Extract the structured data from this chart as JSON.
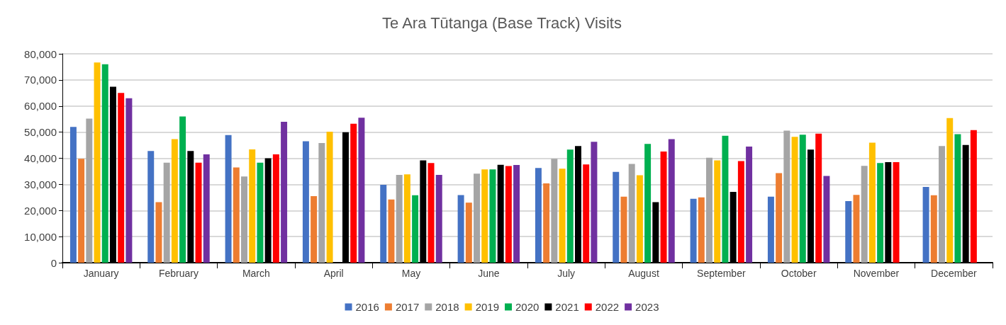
{
  "chart_data": {
    "type": "bar",
    "title": "Te Ara Tūtanga (Base Track) Visits",
    "categories": [
      "January",
      "February",
      "March",
      "April",
      "May",
      "June",
      "July",
      "August",
      "September",
      "October",
      "November",
      "December"
    ],
    "series": [
      {
        "name": "2016",
        "color": "#4472c4",
        "values": [
          52000,
          42800,
          48900,
          46500,
          29800,
          25900,
          36300,
          34800,
          24500,
          25300,
          23600,
          29000
        ]
      },
      {
        "name": "2017",
        "color": "#ed7d31",
        "values": [
          39800,
          23200,
          36500,
          25500,
          24200,
          23000,
          30400,
          25300,
          25000,
          34300,
          26000,
          25800
        ]
      },
      {
        "name": "2018",
        "color": "#a5a5a5",
        "values": [
          55200,
          38300,
          33000,
          45800,
          33600,
          34100,
          39800,
          37800,
          40200,
          50600,
          37100,
          44700
        ]
      },
      {
        "name": "2019",
        "color": "#ffc000",
        "values": [
          76700,
          47300,
          43400,
          50200,
          33800,
          35700,
          36000,
          33500,
          39200,
          48200,
          46000,
          55400
        ]
      },
      {
        "name": "2020",
        "color": "#00b050",
        "values": [
          76000,
          56000,
          38300,
          null,
          25800,
          35700,
          43300,
          45500,
          48600,
          49000,
          38200,
          49200
        ]
      },
      {
        "name": "2021",
        "color": "#000000",
        "values": [
          67400,
          42800,
          40000,
          50000,
          39200,
          37500,
          44700,
          23200,
          27100,
          43300,
          38500,
          45100
        ]
      },
      {
        "name": "2022",
        "color": "#ff0000",
        "values": [
          65000,
          38300,
          41500,
          53200,
          38200,
          37000,
          37600,
          42600,
          38900,
          49400,
          38500,
          50800
        ]
      },
      {
        "name": "2023",
        "color": "#7030a0",
        "values": [
          63000,
          41500,
          54000,
          55500,
          33600,
          37400,
          46300,
          47300,
          44500,
          33200,
          null,
          null
        ]
      }
    ],
    "ylim": [
      0,
      80000
    ],
    "yticks": [
      0,
      {
        "value": 10000,
        "label": "10,000"
      },
      {
        "value": 20000,
        "label": "20,000"
      },
      {
        "value": 30000,
        "label": "30,000"
      },
      {
        "value": 40000,
        "label": "40,000"
      },
      {
        "value": 50000,
        "label": "50,000"
      },
      {
        "value": 60000,
        "label": "60,000"
      },
      {
        "value": 70000,
        "label": "70,000"
      },
      {
        "value": 80000,
        "label": "80,000"
      }
    ],
    "grid": "y",
    "legend": "bottom"
  }
}
